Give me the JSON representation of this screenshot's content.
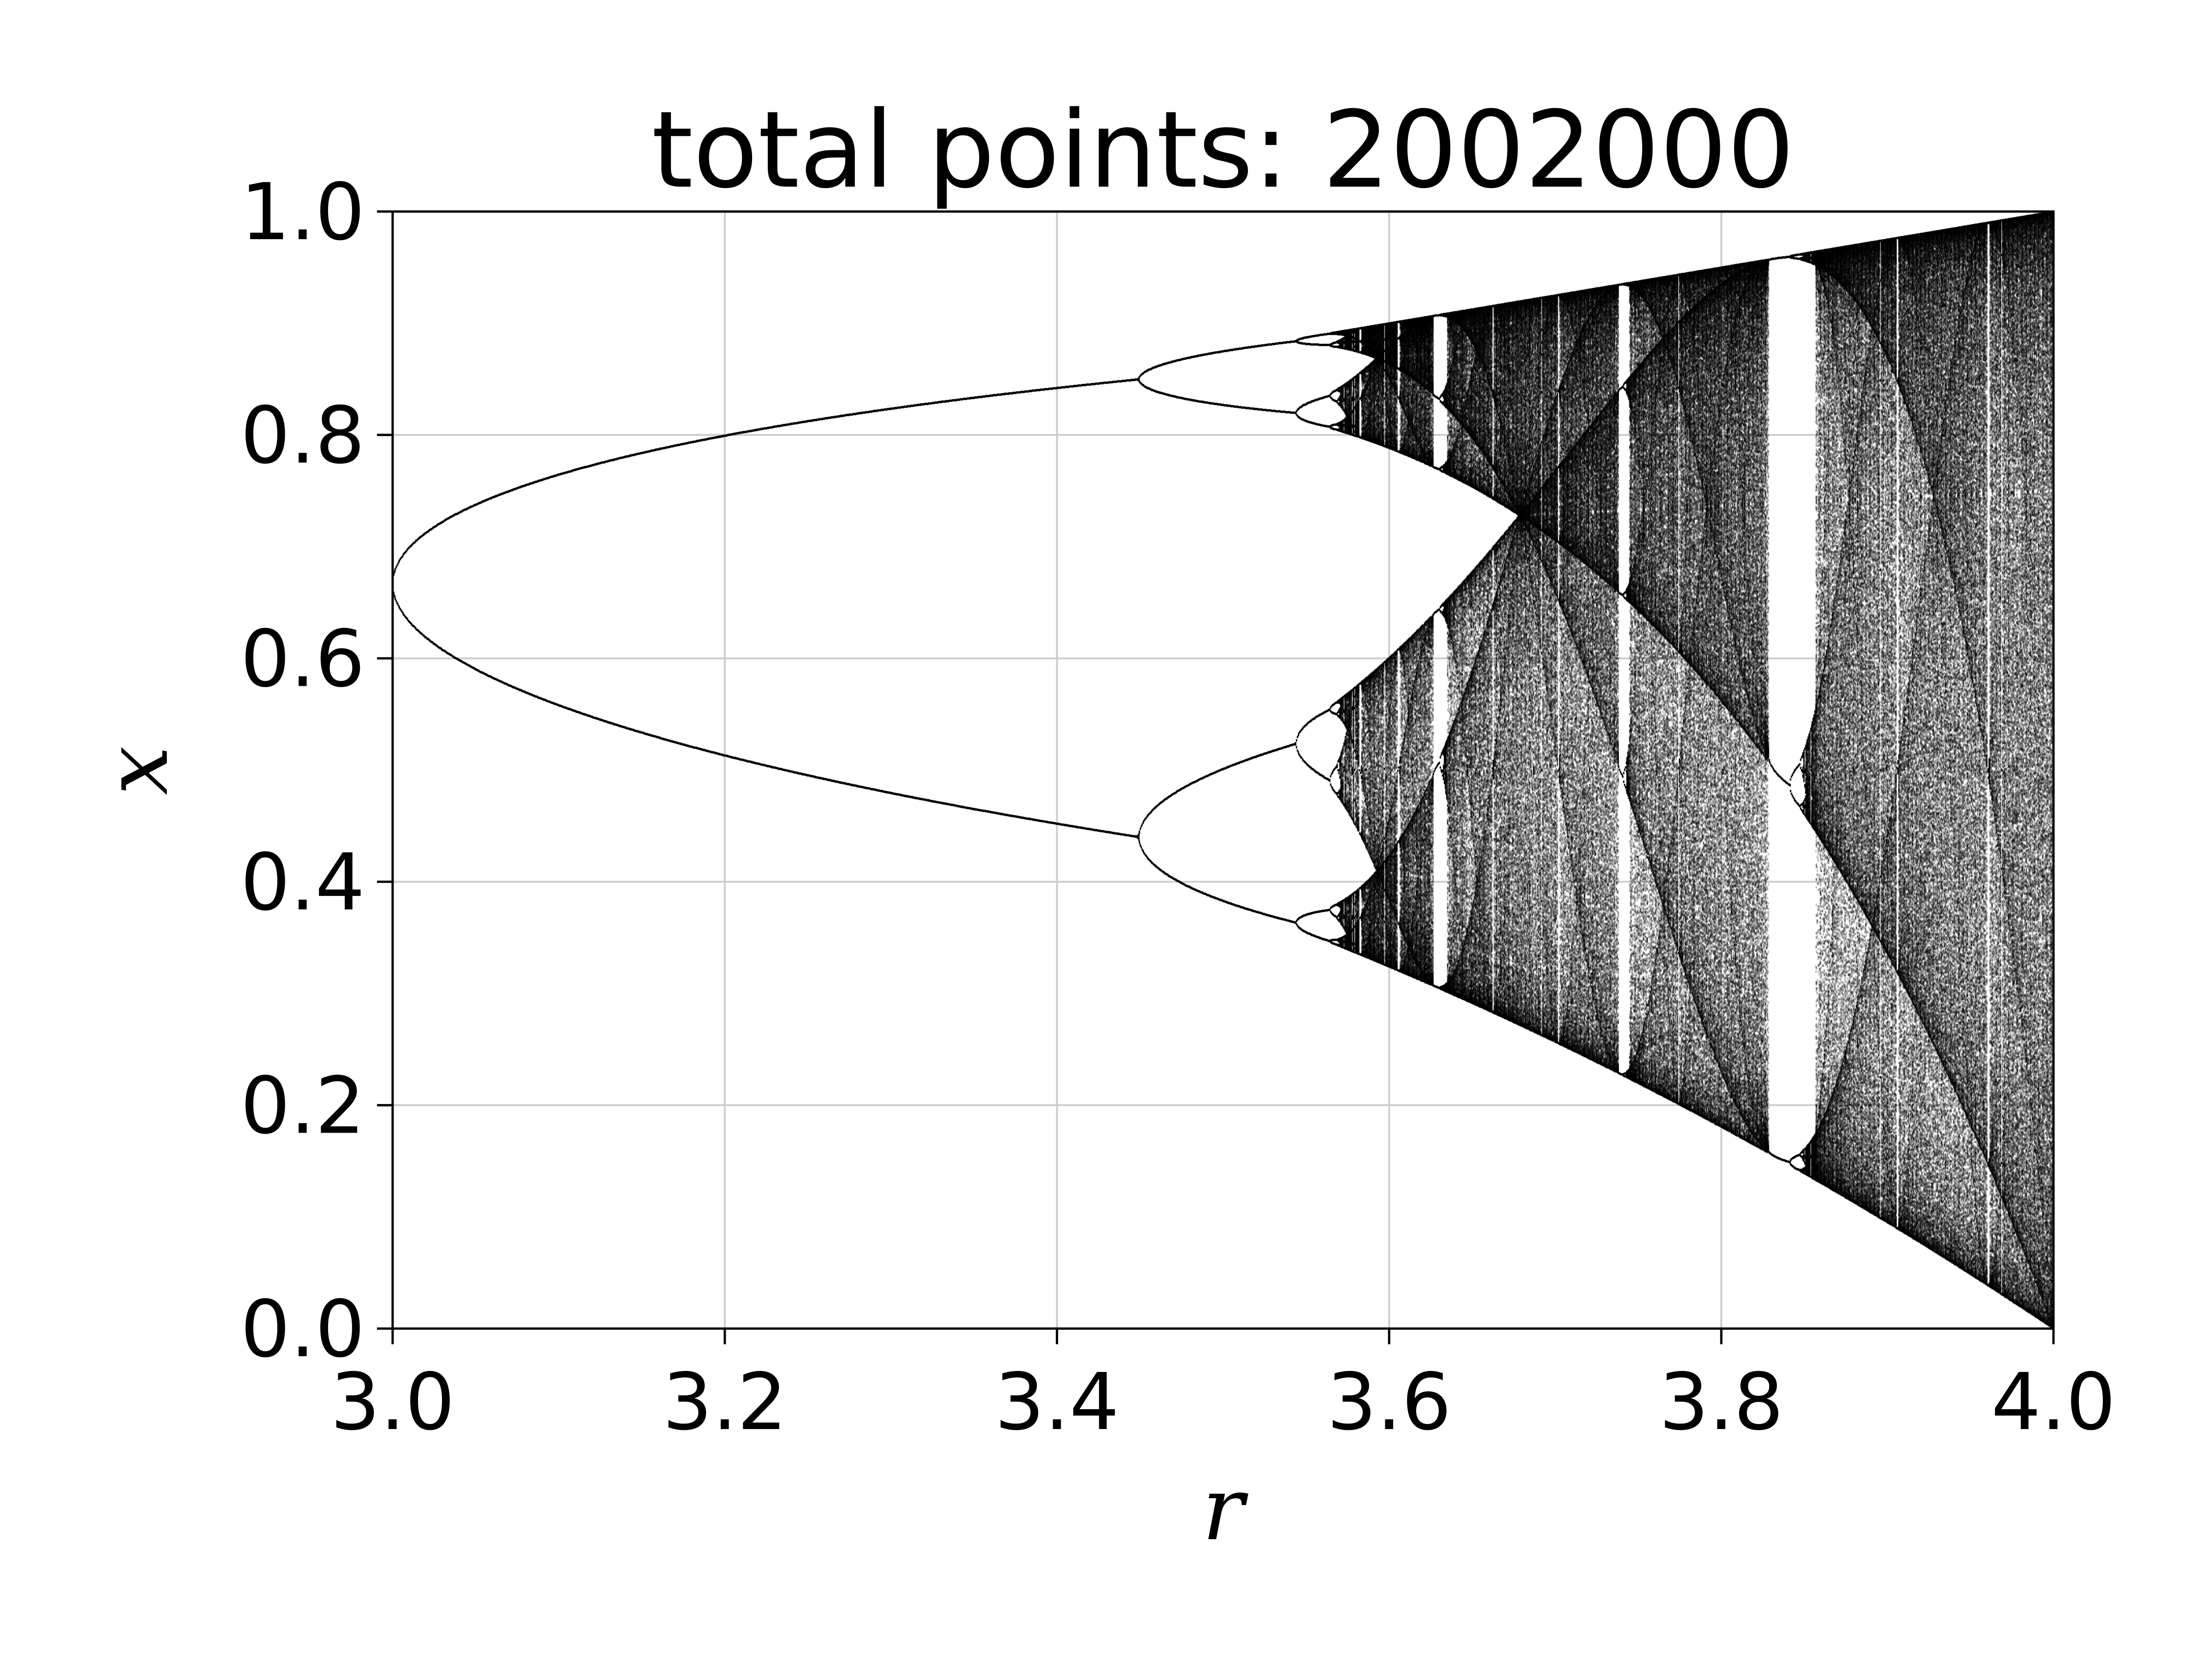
{
  "chart_data": {
    "type": "scatter",
    "title": "total points: 2002000",
    "total_points": 2002000,
    "map": "logistic",
    "xlabel": "r",
    "ylabel": "x",
    "xlim": [
      3.0,
      4.0
    ],
    "ylim": [
      0.0,
      1.0
    ],
    "xticks": [
      3.0,
      3.2,
      3.4,
      3.6,
      3.8,
      4.0
    ],
    "xtick_labels": [
      "3.0",
      "3.2",
      "3.4",
      "3.6",
      "3.8",
      "4.0"
    ],
    "yticks": [
      0.0,
      0.2,
      0.4,
      0.6,
      0.8,
      1.0
    ],
    "ytick_labels": [
      "0.0",
      "0.2",
      "0.4",
      "0.6",
      "0.8",
      "1.0"
    ],
    "grid": true,
    "legend": "none",
    "series": [
      {
        "color": "#000000",
        "r_range": [
          3.0,
          4.0
        ],
        "r_steps": 2000,
        "points_per_r": 1001,
        "branches": {
          "period_1_at_r_3.0": [
            0.667
          ],
          "period_2_at_r_3.2": [
            0.513,
            0.799
          ],
          "period_2_at_r_3.4": [
            0.452,
            0.842
          ],
          "period_4_at_r_3.5": [
            0.383,
            0.501,
            0.827,
            0.875
          ],
          "period_3_window_at_r_3.84": [
            0.149,
            0.488,
            0.959
          ]
        }
      }
    ],
    "colors": {
      "points": "#000000",
      "grid": "#cccccc",
      "axes": "#000000",
      "background": "#ffffff"
    }
  }
}
